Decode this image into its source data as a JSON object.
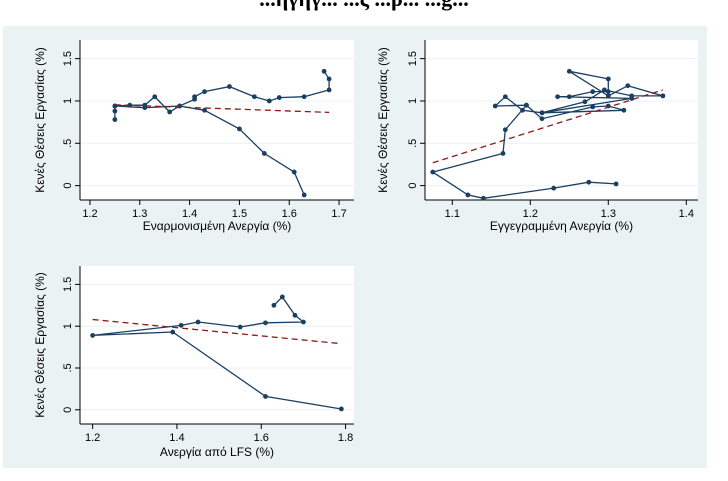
{
  "header": {
    "title": "...ηγηγ... ...ς ...ρ... ...g..."
  },
  "chart_data": [
    {
      "type": "line",
      "xlabel": "Εναρμονισμένη Ανεργία (%)",
      "ylabel": "Κενές Θέσεις Εργασίας (%)",
      "xlim": [
        1.18,
        1.73
      ],
      "ylim": [
        -0.17,
        1.72
      ],
      "x_ticks": [
        "1.2",
        "1.3",
        "1.4",
        "1.5",
        "1.6",
        "1.7"
      ],
      "y_ticks": [
        "0",
        ".5",
        "1",
        "1.5"
      ],
      "grid": "horizontal",
      "series": [
        {
          "kind": "observed",
          "points": [
            [
              1.25,
              0.78
            ],
            [
              1.25,
              0.88
            ],
            [
              1.25,
              0.94
            ],
            [
              1.28,
              0.95
            ],
            [
              1.31,
              0.95
            ],
            [
              1.33,
              1.05
            ],
            [
              1.36,
              0.87
            ],
            [
              1.38,
              0.94
            ],
            [
              1.41,
              1.02
            ],
            [
              1.41,
              1.05
            ],
            [
              1.43,
              1.11
            ],
            [
              1.48,
              1.17
            ],
            [
              1.53,
              1.05
            ],
            [
              1.56,
              1.0
            ],
            [
              1.58,
              1.04
            ],
            [
              1.63,
              1.05
            ],
            [
              1.68,
              1.13
            ],
            [
              1.68,
              1.26
            ],
            [
              1.67,
              1.35
            ]
          ],
          "color": "#1b3f62"
        },
        {
          "kind": "observed",
          "points": [
            [
              1.25,
              0.94
            ],
            [
              1.31,
              0.92
            ],
            [
              1.38,
              0.94
            ],
            [
              1.43,
              0.89
            ],
            [
              1.5,
              0.67
            ],
            [
              1.55,
              0.38
            ],
            [
              1.61,
              0.16
            ],
            [
              1.63,
              -0.11
            ]
          ],
          "color": "#1b3f62"
        },
        {
          "kind": "fit",
          "points": [
            [
              1.25,
              0.955
            ],
            [
              1.68,
              0.865
            ]
          ],
          "color": "#8b1a1a",
          "dashed": true
        }
      ]
    },
    {
      "type": "line",
      "xlabel": "Εγγεγραμμένη Ανεργία (%)",
      "ylabel": "Κενές Θέσεις Εργασίας (%)",
      "xlim": [
        1.065,
        1.415
      ],
      "ylim": [
        -0.17,
        1.72
      ],
      "x_ticks": [
        "1.1",
        "1.2",
        "1.3",
        "1.4"
      ],
      "y_ticks": [
        "0",
        ".5",
        "1",
        "1.5"
      ],
      "grid": "horizontal",
      "series": [
        {
          "kind": "observed",
          "points": [
            [
              1.31,
              0.02
            ],
            [
              1.275,
              0.04
            ],
            [
              1.23,
              -0.03
            ],
            [
              1.14,
              -0.15
            ],
            [
              1.12,
              -0.11
            ],
            [
              1.075,
              0.16
            ],
            [
              1.165,
              0.38
            ],
            [
              1.168,
              0.66
            ],
            [
              1.195,
              0.95
            ],
            [
              1.215,
              0.79
            ],
            [
              1.28,
              0.93
            ],
            [
              1.3,
              0.94
            ],
            [
              1.32,
              0.89
            ],
            [
              1.215,
              0.86
            ],
            [
              1.27,
              0.99
            ],
            [
              1.295,
              1.13
            ],
            [
              1.33,
              1.06
            ],
            [
              1.37,
              1.06
            ],
            [
              1.325,
              1.18
            ],
            [
              1.3,
              1.06
            ],
            [
              1.25,
              1.35
            ],
            [
              1.3,
              1.26
            ],
            [
              1.3,
              1.11
            ],
            [
              1.28,
              1.11
            ],
            [
              1.25,
              1.05
            ],
            [
              1.235,
              1.05
            ],
            [
              1.33,
              1.03
            ],
            [
              1.215,
              0.86
            ],
            [
              1.19,
              0.89
            ],
            [
              1.168,
              1.05
            ],
            [
              1.155,
              0.94
            ],
            [
              1.195,
              0.95
            ]
          ],
          "color": "#1b3f62"
        },
        {
          "kind": "fit",
          "points": [
            [
              1.075,
              0.27
            ],
            [
              1.37,
              1.13
            ]
          ],
          "color": "#8b1a1a",
          "dashed": true
        }
      ]
    },
    {
      "type": "line",
      "xlabel": "Ανεργία από LFS (%)",
      "ylabel": "Κενές Θέσεις Εργασίας (%)",
      "xlim": [
        1.17,
        1.82
      ],
      "ylim": [
        -0.17,
        1.72
      ],
      "x_ticks": [
        "1.2",
        "1.4",
        "1.6",
        "1.8"
      ],
      "y_ticks": [
        "0",
        ".5",
        "1",
        "1.5"
      ],
      "grid": "horizontal",
      "series": [
        {
          "kind": "observed",
          "points": [
            [
              1.79,
              0.01
            ],
            [
              1.61,
              0.16
            ],
            [
              1.39,
              0.93
            ],
            [
              1.2,
              0.89
            ],
            [
              1.41,
              1.01
            ],
            [
              1.45,
              1.05
            ],
            [
              1.55,
              0.99
            ],
            [
              1.61,
              1.04
            ],
            [
              1.7,
              1.05
            ],
            [
              1.68,
              1.13
            ],
            [
              1.65,
              1.35
            ],
            [
              1.63,
              1.25
            ]
          ],
          "color": "#1b3f62"
        },
        {
          "kind": "fit",
          "points": [
            [
              1.2,
              1.08
            ],
            [
              1.79,
              0.79
            ]
          ],
          "color": "#8b1a1a",
          "dashed": true
        }
      ]
    }
  ]
}
